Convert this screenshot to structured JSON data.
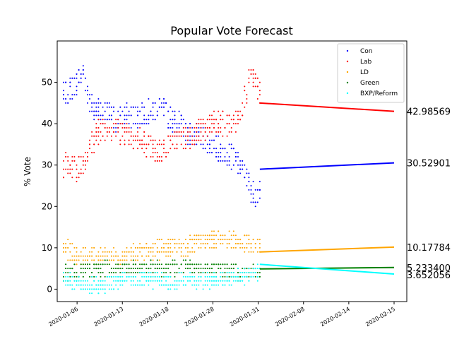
{
  "chart_data": {
    "type": "scatter",
    "title": "Popular Vote Forecast",
    "xlabel": "",
    "ylabel": "% Vote",
    "ylim": [
      -3,
      60
    ],
    "yticks": [
      0,
      10,
      20,
      30,
      40,
      50
    ],
    "xlim_days": [
      -2.5,
      41.5
    ],
    "date_origin": "2020-01-06",
    "xticks": [
      {
        "day": 0,
        "label": "2020-01-06"
      },
      {
        "day": 5.7,
        "label": "2020-01-13"
      },
      {
        "day": 11.4,
        "label": "2020-01-18"
      },
      {
        "day": 17.1,
        "label": "2020-01-28"
      },
      {
        "day": 22.8,
        "label": "2020-01-31"
      },
      {
        "day": 28.5,
        "label": "2020-02-08"
      },
      {
        "day": 34.2,
        "label": "2020-02-14"
      },
      {
        "day": 39.9,
        "label": "2020-02-15"
      }
    ],
    "poll_days": [
      -1.7,
      23.0
    ],
    "legend_position": "top-right",
    "series": [
      {
        "name": "Con",
        "color": "#0000ff",
        "poll_anchors": [
          [
            -1.7,
            47
          ],
          [
            0,
            50
          ],
          [
            0.8,
            53
          ],
          [
            1.6,
            45
          ],
          [
            3,
            43
          ],
          [
            5,
            41
          ],
          [
            7,
            42
          ],
          [
            9,
            43
          ],
          [
            10.5,
            44
          ],
          [
            12,
            41
          ],
          [
            14,
            38
          ],
          [
            16,
            36
          ],
          [
            17.5,
            34
          ],
          [
            19,
            33
          ],
          [
            20.5,
            30
          ],
          [
            21.5,
            26
          ],
          [
            22.3,
            23
          ],
          [
            23,
            23
          ]
        ],
        "poll_spread": 3,
        "forecast_x": [
          23,
          39.9
        ],
        "forecast_y": [
          29.0,
          30.52901
        ],
        "end_label": "30.52901"
      },
      {
        "name": "Lab",
        "color": "#ff0000",
        "poll_anchors": [
          [
            -1.7,
            30
          ],
          [
            0,
            29
          ],
          [
            1.2,
            32
          ],
          [
            2.5,
            38
          ],
          [
            4,
            39
          ],
          [
            6,
            38
          ],
          [
            8,
            36
          ],
          [
            10,
            33
          ],
          [
            12,
            35
          ],
          [
            14,
            37
          ],
          [
            16,
            39
          ],
          [
            18,
            40
          ],
          [
            20,
            40
          ],
          [
            21.2,
            47
          ],
          [
            22,
            52
          ],
          [
            23,
            47
          ]
        ],
        "poll_spread": 3,
        "forecast_x": [
          23,
          39.9
        ],
        "forecast_y": [
          45.0,
          42.98569
        ],
        "end_label": "42.98569"
      },
      {
        "name": "LD",
        "color": "#ffa500",
        "poll_anchors": [
          [
            -1.7,
            10
          ],
          [
            0,
            8
          ],
          [
            3,
            8
          ],
          [
            6,
            8
          ],
          [
            9,
            9
          ],
          [
            11,
            10
          ],
          [
            13,
            10
          ],
          [
            15,
            11
          ],
          [
            17,
            12
          ],
          [
            19,
            12
          ],
          [
            21,
            11
          ],
          [
            23,
            10
          ]
        ],
        "poll_spread": 2.2,
        "forecast_x": [
          23,
          39.9
        ],
        "forecast_y": [
          9.0,
          10.17784
        ],
        "end_label": "10.17784"
      },
      {
        "name": "Green",
        "color": "#008000",
        "poll_anchors": [
          [
            -1.7,
            4
          ],
          [
            0,
            4
          ],
          [
            3,
            5
          ],
          [
            6,
            5
          ],
          [
            9,
            5
          ],
          [
            12,
            5
          ],
          [
            15,
            5
          ],
          [
            18,
            5
          ],
          [
            21,
            4
          ],
          [
            23,
            4
          ]
        ],
        "poll_spread": 1.8,
        "forecast_x": [
          23,
          39.9
        ],
        "forecast_y": [
          4.9,
          5.2334
        ],
        "end_label": "5.233400"
      },
      {
        "name": "BXP/Reform",
        "color": "#00ffff",
        "poll_anchors": [
          [
            -1.7,
            3
          ],
          [
            0,
            1
          ],
          [
            3,
            1
          ],
          [
            6,
            2
          ],
          [
            9,
            2
          ],
          [
            12,
            2
          ],
          [
            15,
            2
          ],
          [
            18,
            2
          ],
          [
            21,
            3
          ],
          [
            23,
            4
          ]
        ],
        "poll_spread": 1.8,
        "forecast_x": [
          23,
          39.9
        ],
        "forecast_y": [
          6.0,
          3.652056
        ],
        "end_label": "3.652056"
      }
    ]
  }
}
